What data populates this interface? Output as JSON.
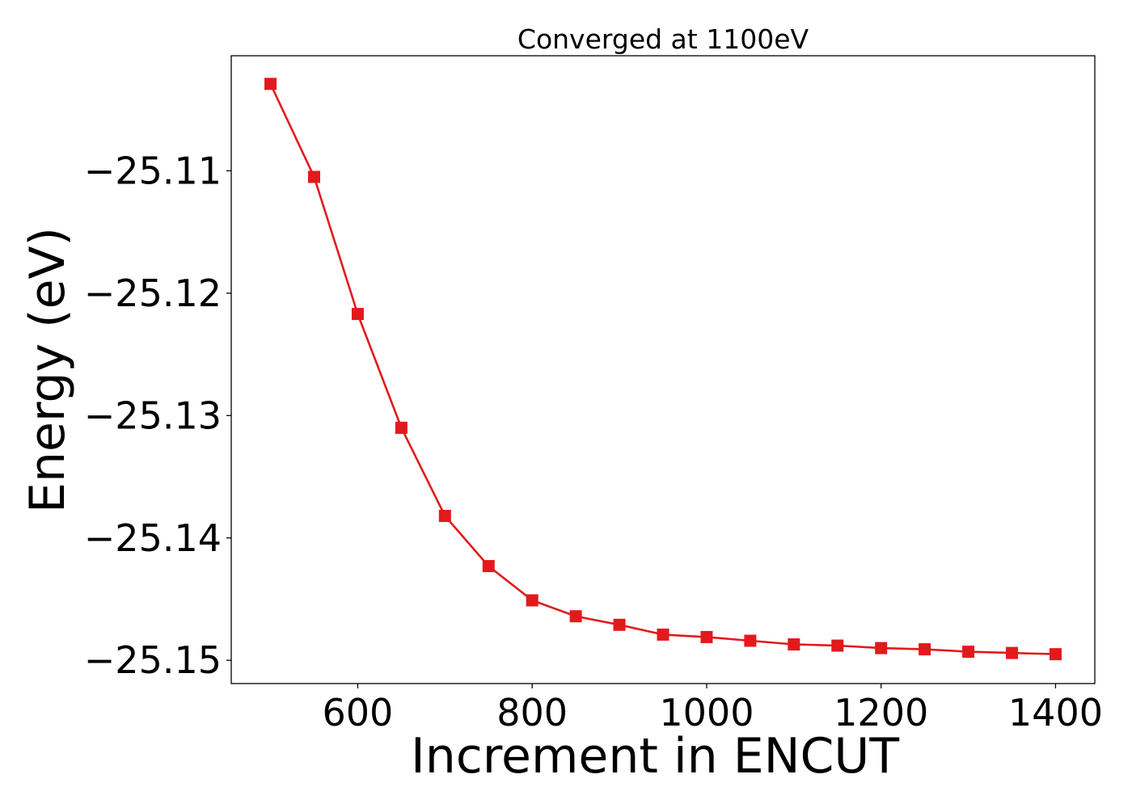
{
  "chart_data": {
    "type": "line",
    "title": "Converged at 1100eV",
    "xlabel": "Increment in ENCUT",
    "ylabel": "Energy (eV)",
    "xlim": [
      455,
      1445
    ],
    "ylim": [
      -25.1519,
      -25.1006
    ],
    "x_ticks": [
      600,
      800,
      1000,
      1200,
      1400
    ],
    "y_ticks": [
      -25.11,
      -25.12,
      -25.13,
      -25.14,
      -25.15
    ],
    "x_tick_labels": [
      "600",
      "800",
      "1000",
      "1200",
      "1400"
    ],
    "y_tick_labels": [
      "−25.11",
      "−25.12",
      "−25.13",
      "−25.14",
      "−25.15"
    ],
    "grid": false,
    "legend": "none",
    "series": [
      {
        "color": "#e31a1c",
        "marker": "square",
        "x": [
          500,
          550,
          600,
          650,
          700,
          750,
          800,
          850,
          900,
          950,
          1000,
          1050,
          1100,
          1150,
          1200,
          1250,
          1300,
          1350,
          1400
        ],
        "y": [
          -25.1029,
          -25.1105,
          -25.1217,
          -25.131,
          -25.1382,
          -25.1423,
          -25.1451,
          -25.1464,
          -25.1471,
          -25.1479,
          -25.1481,
          -25.1484,
          -25.1487,
          -25.1488,
          -25.149,
          -25.1491,
          -25.1493,
          -25.1494,
          -25.1495
        ]
      }
    ]
  }
}
